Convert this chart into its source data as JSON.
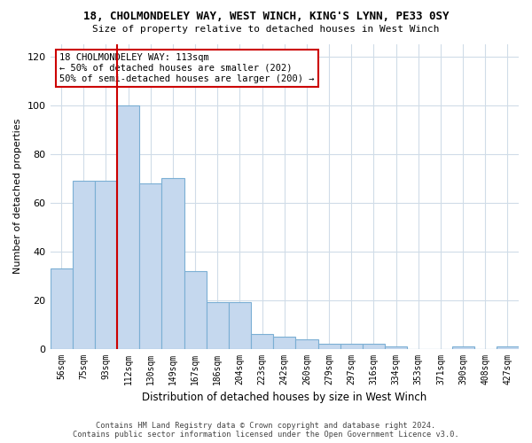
{
  "title1": "18, CHOLMONDELEY WAY, WEST WINCH, KING'S LYNN, PE33 0SY",
  "title2": "Size of property relative to detached houses in West Winch",
  "xlabel": "Distribution of detached houses by size in West Winch",
  "ylabel": "Number of detached properties",
  "bar_color": "#C5D8EE",
  "bar_edge_color": "#7BAFD4",
  "grid_color": "#D0DCE8",
  "red_line_color": "#CC0000",
  "annotation_box_color": "#FFFFFF",
  "annotation_box_edge": "#CC0000",
  "categories": [
    "56sqm",
    "75sqm",
    "93sqm",
    "112sqm",
    "130sqm",
    "149sqm",
    "167sqm",
    "186sqm",
    "204sqm",
    "223sqm",
    "242sqm",
    "260sqm",
    "279sqm",
    "297sqm",
    "316sqm",
    "334sqm",
    "353sqm",
    "371sqm",
    "390sqm",
    "408sqm",
    "427sqm"
  ],
  "values": [
    33,
    69,
    69,
    100,
    68,
    70,
    32,
    19,
    19,
    6,
    5,
    4,
    2,
    2,
    2,
    1,
    0,
    0,
    1,
    0,
    1
  ],
  "red_line_index": 3,
  "annotation_text": "18 CHOLMONDELEY WAY: 113sqm\n← 50% of detached houses are smaller (202)\n50% of semi-detached houses are larger (200) →",
  "ylim": [
    0,
    125
  ],
  "yticks": [
    0,
    20,
    40,
    60,
    80,
    100,
    120
  ],
  "footer_text": "Contains HM Land Registry data © Crown copyright and database right 2024.\nContains public sector information licensed under the Open Government Licence v3.0.",
  "bg_color": "#FFFFFF",
  "fig_bg_color": "#FFFFFF"
}
